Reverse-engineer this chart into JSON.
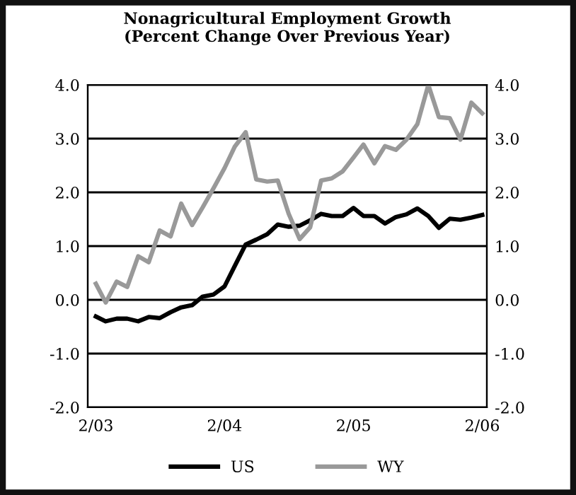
{
  "chart_data": {
    "type": "line",
    "title": "Nonagricultural Employment Growth\n(Percent Change Over Previous Year)",
    "x": [
      "2003-02",
      "2003-03",
      "2003-04",
      "2003-05",
      "2003-06",
      "2003-07",
      "2003-08",
      "2003-09",
      "2003-10",
      "2003-11",
      "2003-12",
      "2004-01",
      "2004-02",
      "2004-03",
      "2004-04",
      "2004-05",
      "2004-06",
      "2004-07",
      "2004-08",
      "2004-09",
      "2004-10",
      "2004-11",
      "2004-12",
      "2005-01",
      "2005-02",
      "2005-03",
      "2005-04",
      "2005-05",
      "2005-06",
      "2005-07",
      "2005-08",
      "2005-09",
      "2005-10",
      "2005-11",
      "2005-12",
      "2006-01",
      "2006-02"
    ],
    "series": [
      {
        "name": "US",
        "color": "#000000",
        "values": [
          -0.31,
          -0.4,
          -0.35,
          -0.35,
          -0.4,
          -0.32,
          -0.34,
          -0.23,
          -0.14,
          -0.1,
          0.06,
          0.1,
          0.25,
          0.63,
          1.03,
          1.12,
          1.22,
          1.4,
          1.36,
          1.38,
          1.48,
          1.6,
          1.56,
          1.56,
          1.71,
          1.56,
          1.56,
          1.42,
          1.54,
          1.59,
          1.7,
          1.56,
          1.34,
          1.51,
          1.49,
          1.53,
          1.58
        ]
      },
      {
        "name": "WY",
        "color": "#999999",
        "values": [
          0.3,
          -0.05,
          0.34,
          0.24,
          0.81,
          0.7,
          1.29,
          1.18,
          1.79,
          1.39,
          1.72,
          2.08,
          2.45,
          2.85,
          3.12,
          2.24,
          2.2,
          2.22,
          1.6,
          1.13,
          1.35,
          2.22,
          2.26,
          2.39,
          2.65,
          2.89,
          2.54,
          2.86,
          2.79,
          2.98,
          3.27,
          4.0,
          3.4,
          3.38,
          2.98,
          3.67,
          3.47
        ]
      }
    ],
    "xlim": [
      "2003-01-09",
      "2006-02-14"
    ],
    "xticks": [
      {
        "value": "2003-02",
        "label": "2/03"
      },
      {
        "value": "2004-02",
        "label": "2/04"
      },
      {
        "value": "2005-02",
        "label": "2/05"
      },
      {
        "value": "2006-02",
        "label": "2/06"
      }
    ],
    "ylim": [
      -2,
      4
    ],
    "yticks": [
      {
        "value": -2,
        "label": "-2.0"
      },
      {
        "value": -1,
        "label": "-1.0"
      },
      {
        "value": 0,
        "label": "0.0"
      },
      {
        "value": 1,
        "label": "1.0"
      },
      {
        "value": 2,
        "label": "2.0"
      },
      {
        "value": 3,
        "label": "3.0"
      },
      {
        "value": 4,
        "label": "4.0"
      }
    ],
    "y2lim": [
      -2,
      4
    ],
    "y2ticks": [
      {
        "value": -2,
        "label": "-2.0"
      },
      {
        "value": -1,
        "label": "-1.0"
      },
      {
        "value": 0,
        "label": "0.0"
      },
      {
        "value": 1,
        "label": "1.0"
      },
      {
        "value": 2,
        "label": "2.0"
      },
      {
        "value": 3,
        "label": "3.0"
      },
      {
        "value": 4,
        "label": "4.0"
      }
    ],
    "grid": "y",
    "legend": "bottom",
    "marker": "none",
    "line_style": "solid"
  }
}
